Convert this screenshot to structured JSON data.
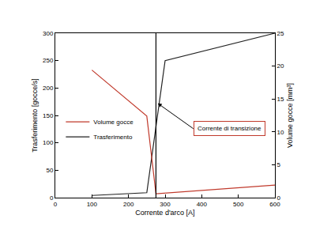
{
  "chart_data": {
    "type": "line",
    "x_label": "Corrente d'arco [A]",
    "y_label": "Trasferimento [gocce/s]",
    "y2_label": "Volume gocce [mm³]",
    "xlim": [
      0,
      600
    ],
    "xticks": [
      0,
      100,
      200,
      300,
      400,
      500,
      600
    ],
    "ylim": [
      0,
      300
    ],
    "yticks": [
      0,
      50,
      100,
      150,
      200,
      250,
      300
    ],
    "y2lim": [
      0,
      25
    ],
    "y2ticks": [
      0,
      5,
      10,
      15,
      20,
      25
    ],
    "grid": false,
    "legend": "lower left",
    "series": [
      {
        "name": "Volume gocce",
        "color": "#c0392b",
        "axis": "y2",
        "x": [
          100,
          250,
          275,
          600
        ],
        "values": [
          19.4,
          12.4,
          0.6,
          1.9
        ]
      },
      {
        "name": "Trasferimento",
        "color": "#222222",
        "x": [
          100,
          250,
          300,
          600
        ],
        "values": [
          4,
          9,
          250,
          300
        ]
      }
    ],
    "vertical_lines": [
      275
    ],
    "annotations": [
      {
        "text": "Corrente di transizione",
        "x": 280,
        "y": 172
      }
    ]
  }
}
